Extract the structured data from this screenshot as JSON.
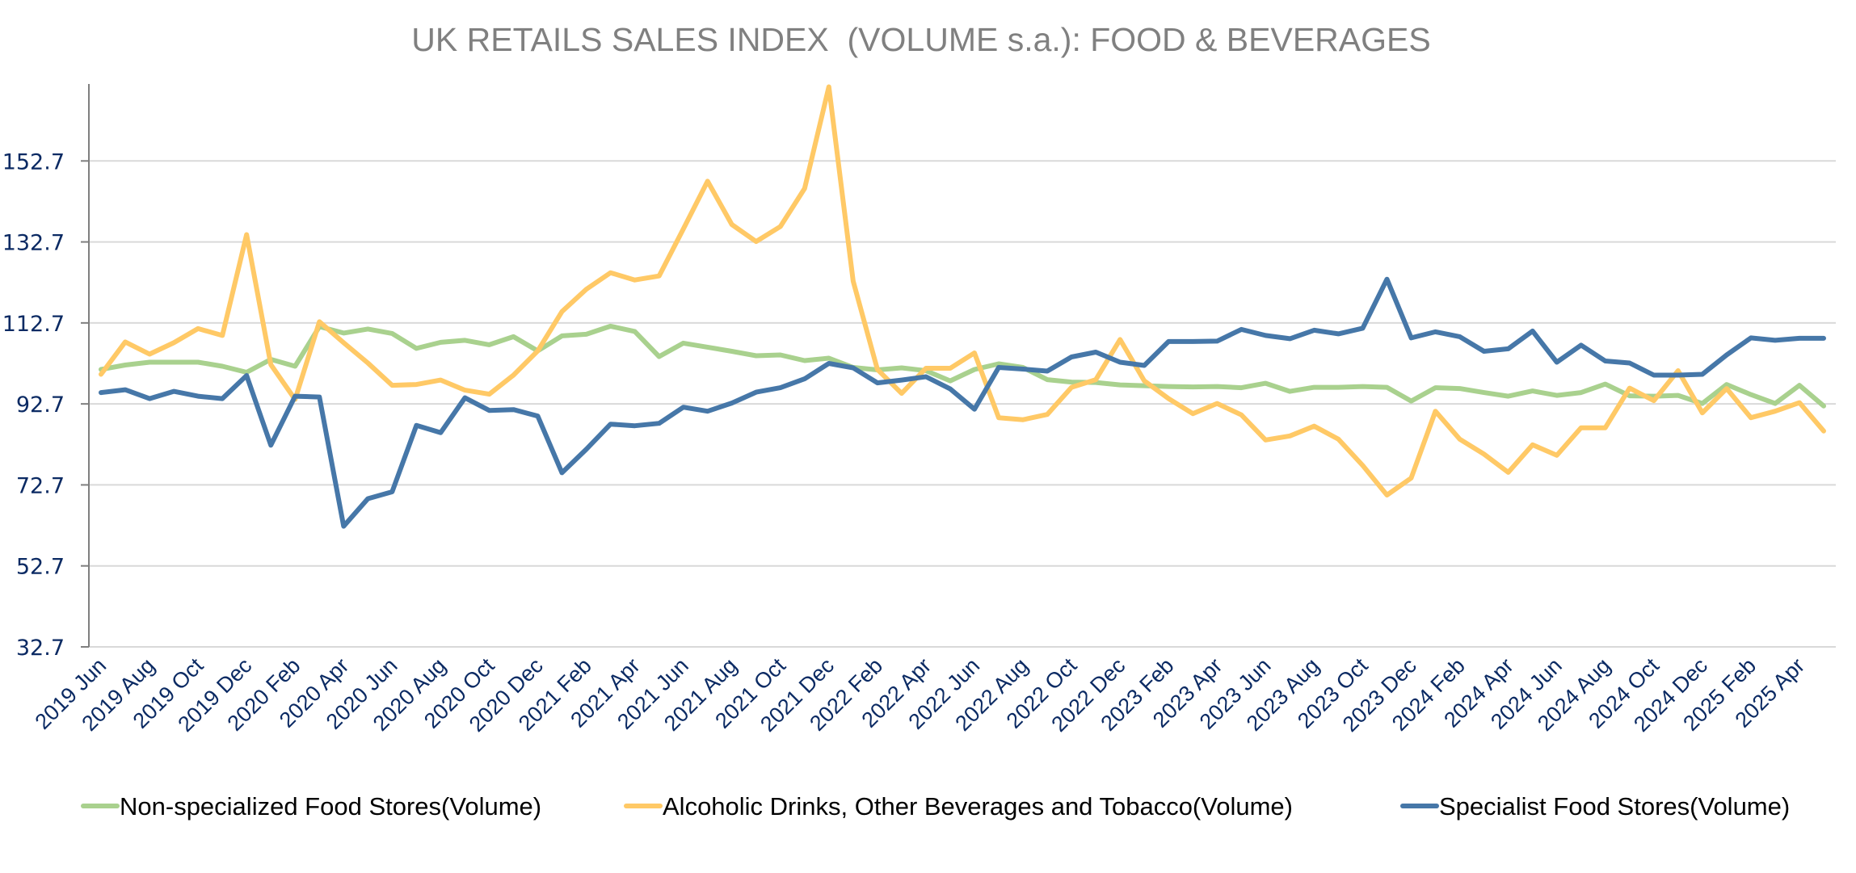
{
  "chart_data": {
    "type": "line",
    "title": "UK RETAILS SALES INDEX  (VOLUME s.a.): FOOD & BEVERAGES",
    "xlabel": "",
    "ylabel": "",
    "ylim": [
      32.7,
      172.7
    ],
    "yticks": [
      "32.7",
      "52.7",
      "72.7",
      "92.7",
      "112.7",
      "132.7",
      "152.7"
    ],
    "grid": true,
    "legend_position": "bottom",
    "x": [
      "2019 Jun",
      "2019 Jul",
      "2019 Aug",
      "2019 Sep",
      "2019 Oct",
      "2019 Nov",
      "2019 Dec",
      "2020 Jan",
      "2020 Feb",
      "2020 Mar",
      "2020 Apr",
      "2020 May",
      "2020 Jun",
      "2020 Jul",
      "2020 Aug",
      "2020 Sep",
      "2020 Oct",
      "2020 Nov",
      "2020 Dec",
      "2021 Jan",
      "2021 Feb",
      "2021 Mar",
      "2021 Apr",
      "2021 May",
      "2021 Jun",
      "2021 Jul",
      "2021 Aug",
      "2021 Sep",
      "2021 Oct",
      "2021 Nov",
      "2021 Dec",
      "2022 Jan",
      "2022 Feb",
      "2022 Mar",
      "2022 Apr",
      "2022 May",
      "2022 Jun",
      "2022 Jul",
      "2022 Aug",
      "2022 Sep",
      "2022 Oct",
      "2022 Nov",
      "2022 Dec",
      "2023 Jan",
      "2023 Feb",
      "2023 Mar",
      "2023 Apr",
      "2023 May",
      "2023 Jun",
      "2023 Jul",
      "2023 Aug",
      "2023 Sep",
      "2023 Oct",
      "2023 Nov",
      "2023 Dec",
      "2024 Jan",
      "2024 Feb",
      "2024 Mar",
      "2024 Apr",
      "2024 May",
      "2024 Jun",
      "2024 Jul",
      "2024 Aug",
      "2024 Sep",
      "2024 Oct",
      "2024 Nov",
      "2024 Dec",
      "2025 Jan",
      "2025 Feb",
      "2025 Mar",
      "2025 Apr",
      "2025 May"
    ],
    "x_tick_labels": [
      "2019 Jun",
      "2019 Aug",
      "2019 Oct",
      "2019 Dec",
      "2020 Feb",
      "2020 Apr",
      "2020 Jun",
      "2020 Aug",
      "2020 Oct",
      "2020 Dec",
      "2021 Feb",
      "2021 Apr",
      "2021 Jun",
      "2021 Aug",
      "2021 Oct",
      "2021 Dec",
      "2022 Feb",
      "2022 Apr",
      "2022 Jun",
      "2022 Aug",
      "2022 Oct",
      "2022 Dec",
      "2023 Feb",
      "2023 Apr",
      "2023 Jun",
      "2023 Aug",
      "2023 Oct",
      "2023 Dec",
      "2024 Feb",
      "2024 Apr",
      "2024 Jun",
      "2024 Aug",
      "2024 Oct",
      "2024 Dec",
      "2025 Feb",
      "2025 Apr"
    ],
    "series": [
      {
        "name": "Non-specialized Food Stores(Volume)",
        "color": "#a9d18e",
        "values": [
          101.2,
          102.3,
          103.0,
          103.0,
          103.0,
          102.0,
          100.5,
          103.7,
          102.0,
          111.8,
          110.2,
          111.2,
          110.1,
          106.4,
          107.9,
          108.4,
          107.3,
          109.3,
          105.8,
          109.5,
          109.9,
          111.9,
          110.6,
          104.4,
          107.7,
          106.7,
          105.7,
          104.6,
          104.8,
          103.4,
          104.0,
          101.7,
          101.1,
          101.6,
          100.9,
          98.4,
          101.2,
          102.6,
          101.7,
          98.7,
          98.1,
          98.0,
          97.4,
          97.2,
          97.0,
          96.9,
          97.0,
          96.7,
          97.8,
          95.8,
          96.8,
          96.8,
          97.0,
          96.8,
          93.4,
          96.7,
          96.5,
          95.5,
          94.6,
          95.9,
          94.8,
          95.5,
          97.6,
          94.7,
          94.6,
          94.8,
          92.8,
          97.5,
          95.0,
          92.8,
          97.3,
          92.2
        ]
      },
      {
        "name": "Alcoholic Drinks, Other Beverages and Tobacco(Volume)",
        "color": "#ffc966",
        "values": [
          100.0,
          108.0,
          105.0,
          107.8,
          111.3,
          109.6,
          134.5,
          102.4,
          93.8,
          113.0,
          107.8,
          102.8,
          97.3,
          97.5,
          98.6,
          96.1,
          95.1,
          99.8,
          105.8,
          115.5,
          121.0,
          125.1,
          123.3,
          124.3,
          135.9,
          147.7,
          137.0,
          132.8,
          136.5,
          145.9,
          171.0,
          123.0,
          101.2,
          95.3,
          101.5,
          101.5,
          105.3,
          89.3,
          88.8,
          90.1,
          96.8,
          98.7,
          108.6,
          98.4,
          94.0,
          90.3,
          92.8,
          90.0,
          83.8,
          84.8,
          87.2,
          84.0,
          77.5,
          70.2,
          74.4,
          90.9,
          84.0,
          80.3,
          75.8,
          82.6,
          80.0,
          86.8,
          86.8,
          96.6,
          93.5,
          100.9,
          90.5,
          96.5,
          89.3,
          90.9,
          93.0,
          86.0
        ]
      },
      {
        "name": "Specialist Food Stores(Volume)",
        "color": "#4677a8",
        "values": [
          95.5,
          96.2,
          94.0,
          95.8,
          94.6,
          94.0,
          99.7,
          82.5,
          94.6,
          94.4,
          62.5,
          69.3,
          71.0,
          87.4,
          85.6,
          94.2,
          91.1,
          91.3,
          89.7,
          75.7,
          81.5,
          87.7,
          87.3,
          87.9,
          91.9,
          90.9,
          92.9,
          95.6,
          96.7,
          98.9,
          102.7,
          101.6,
          97.9,
          98.6,
          99.4,
          96.4,
          91.4,
          101.7,
          101.3,
          100.8,
          104.3,
          105.5,
          103.0,
          102.2,
          108.1,
          108.1,
          108.2,
          111.1,
          109.6,
          108.8,
          110.9,
          110.0,
          111.4,
          123.5,
          109.0,
          110.5,
          109.3,
          105.7,
          106.3,
          110.7,
          103.0,
          107.2,
          103.3,
          102.8,
          99.8,
          99.8,
          100.0,
          104.8,
          109.0,
          108.4,
          108.9,
          108.9
        ]
      }
    ]
  }
}
